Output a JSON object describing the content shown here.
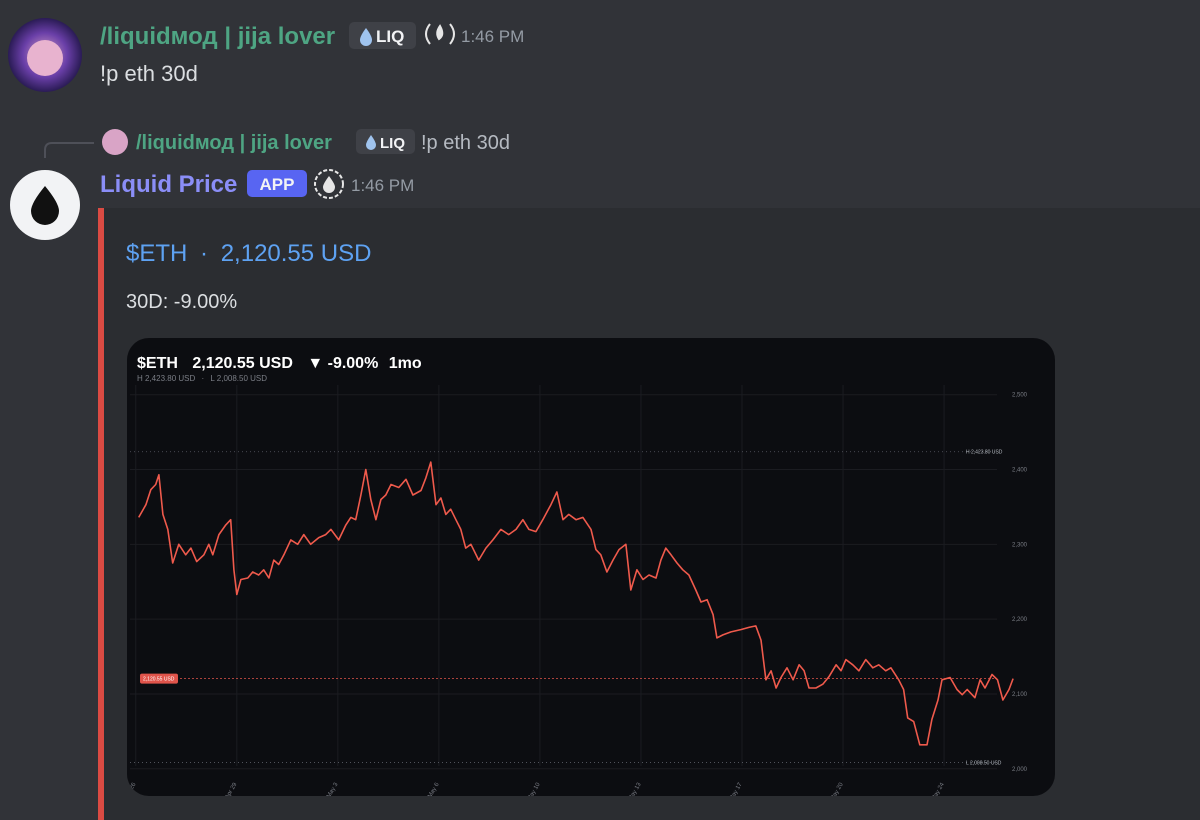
{
  "messages": [
    {
      "author": "/liquidмод | jija lover",
      "tag": "LIQ",
      "time": "1:46 PM",
      "content": "!p eth 30d"
    },
    {
      "reply": {
        "author": "/liquidмод | jija lover",
        "tag": "LIQ",
        "content": "!p eth 30d"
      },
      "author": "Liquid Price",
      "badge": "APP",
      "time": "1:46 PM",
      "embed": {
        "title": "$ETH",
        "separator": "·",
        "price": "2,120.55 USD",
        "description": "30D: -9.00%"
      }
    }
  ],
  "chart_data": {
    "type": "line",
    "title": "$ETH",
    "price": "2,120.55 USD",
    "change": "▼ -9.00%",
    "range": "1mo",
    "separator": "·",
    "xlim": [
      -0.2,
      30.7
    ],
    "ylim": [
      1985,
      2513
    ],
    "grid": true,
    "xticks": [
      {
        "value": 0,
        "label": "Apr 26"
      },
      {
        "value": 3.5,
        "label": "Apr 29"
      },
      {
        "value": 7,
        "label": "May 3"
      },
      {
        "value": 10.5,
        "label": "May 6"
      },
      {
        "value": 14,
        "label": "May 10"
      },
      {
        "value": 17.5,
        "label": "May 13"
      },
      {
        "value": 21,
        "label": "May 17"
      },
      {
        "value": 24.5,
        "label": "May 20"
      },
      {
        "value": 28,
        "label": "May 24"
      }
    ],
    "yticks": [
      {
        "value": 2000,
        "label": "2,000"
      },
      {
        "value": 2100,
        "label": "2,100"
      },
      {
        "value": 2200,
        "label": "2,200"
      },
      {
        "value": 2300,
        "label": "2,300"
      },
      {
        "value": 2400,
        "label": "2,400"
      },
      {
        "value": 2500,
        "label": "2,500"
      }
    ],
    "reference_lines": [
      {
        "value": 2120.55,
        "label": "2,120.55 USD",
        "color": "#e0544b"
      },
      {
        "value": 2423.8,
        "label": "H 2,423.80 USD",
        "color": "#5a5d66"
      },
      {
        "value": 2008.5,
        "label": "L 2,008.50 USD",
        "color": "#5a5d66"
      }
    ],
    "series": [
      {
        "color": "#ef5a4c",
        "x": [
          0.1,
          0.35,
          0.52,
          0.69,
          0.8,
          0.94,
          1.11,
          1.28,
          1.49,
          1.73,
          1.91,
          2.11,
          2.36,
          2.53,
          2.67,
          2.88,
          3.12,
          3.29,
          3.4,
          3.5,
          3.64,
          3.88,
          4.05,
          4.26,
          4.43,
          4.61,
          4.78,
          4.95,
          5.13,
          5.37,
          5.61,
          5.82,
          6.06,
          6.34,
          6.58,
          6.76,
          7.03,
          7.28,
          7.45,
          7.62,
          7.8,
          7.97,
          8.14,
          8.32,
          8.49,
          8.66,
          8.84,
          9.11,
          9.36,
          9.6,
          9.88,
          10.05,
          10.22,
          10.4,
          10.57,
          10.74,
          10.91,
          11.09,
          11.26,
          11.43,
          11.61,
          11.88,
          12.13,
          12.37,
          12.65,
          12.92,
          13.17,
          13.41,
          13.62,
          13.86,
          14.1,
          14.38,
          14.59,
          14.8,
          15.0,
          15.25,
          15.49,
          15.77,
          15.94,
          16.11,
          16.32,
          16.53,
          16.74,
          16.98,
          17.15,
          17.36,
          17.57,
          17.78,
          18.02,
          18.19,
          18.36,
          18.54,
          18.75,
          18.95,
          19.16,
          19.4,
          19.58,
          19.79,
          20.0,
          20.13,
          20.34,
          20.62,
          20.96,
          21.24,
          21.48,
          21.66,
          21.83,
          22.01,
          22.18,
          22.35,
          22.56,
          22.77,
          22.98,
          23.15,
          23.32,
          23.56,
          23.8,
          24.01,
          24.26,
          24.43,
          24.6,
          24.84,
          25.05,
          25.29,
          25.53,
          25.74,
          25.98,
          26.16,
          26.43,
          26.6,
          26.74,
          26.95,
          27.16,
          27.41,
          27.58,
          27.79,
          27.93,
          28.21,
          28.45,
          28.63,
          28.8,
          29.07,
          29.25,
          29.42,
          29.66,
          29.85,
          30.04,
          30.25,
          30.39
        ],
        "values": [
          2336,
          2353,
          2373,
          2380,
          2393,
          2340,
          2320,
          2275,
          2300,
          2286,
          2295,
          2277,
          2286,
          2300,
          2286,
          2313,
          2326,
          2333,
          2266,
          2233,
          2253,
          2255,
          2263,
          2259,
          2266,
          2255,
          2279,
          2273,
          2286,
          2306,
          2300,
          2313,
          2300,
          2309,
          2313,
          2320,
          2306,
          2326,
          2336,
          2333,
          2366,
          2400,
          2360,
          2333,
          2360,
          2366,
          2380,
          2376,
          2387,
          2366,
          2372,
          2389,
          2410,
          2353,
          2362,
          2340,
          2347,
          2333,
          2320,
          2295,
          2300,
          2279,
          2295,
          2306,
          2320,
          2313,
          2320,
          2333,
          2320,
          2317,
          2333,
          2353,
          2370,
          2333,
          2340,
          2333,
          2336,
          2320,
          2293,
          2286,
          2263,
          2279,
          2293,
          2300,
          2239,
          2266,
          2253,
          2259,
          2255,
          2279,
          2295,
          2286,
          2275,
          2266,
          2259,
          2239,
          2223,
          2226,
          2206,
          2175,
          2179,
          2183,
          2186,
          2189,
          2191,
          2172,
          2119,
          2131,
          2108,
          2122,
          2135,
          2119,
          2139,
          2131,
          2108,
          2108,
          2113,
          2123,
          2139,
          2131,
          2146,
          2139,
          2131,
          2146,
          2135,
          2139,
          2131,
          2135,
          2119,
          2106,
          2068,
          2063,
          2032,
          2032,
          2066,
          2092,
          2119,
          2122,
          2106,
          2099,
          2106,
          2095,
          2119,
          2108,
          2126,
          2119,
          2092,
          2106,
          2120.55
        ]
      }
    ]
  }
}
